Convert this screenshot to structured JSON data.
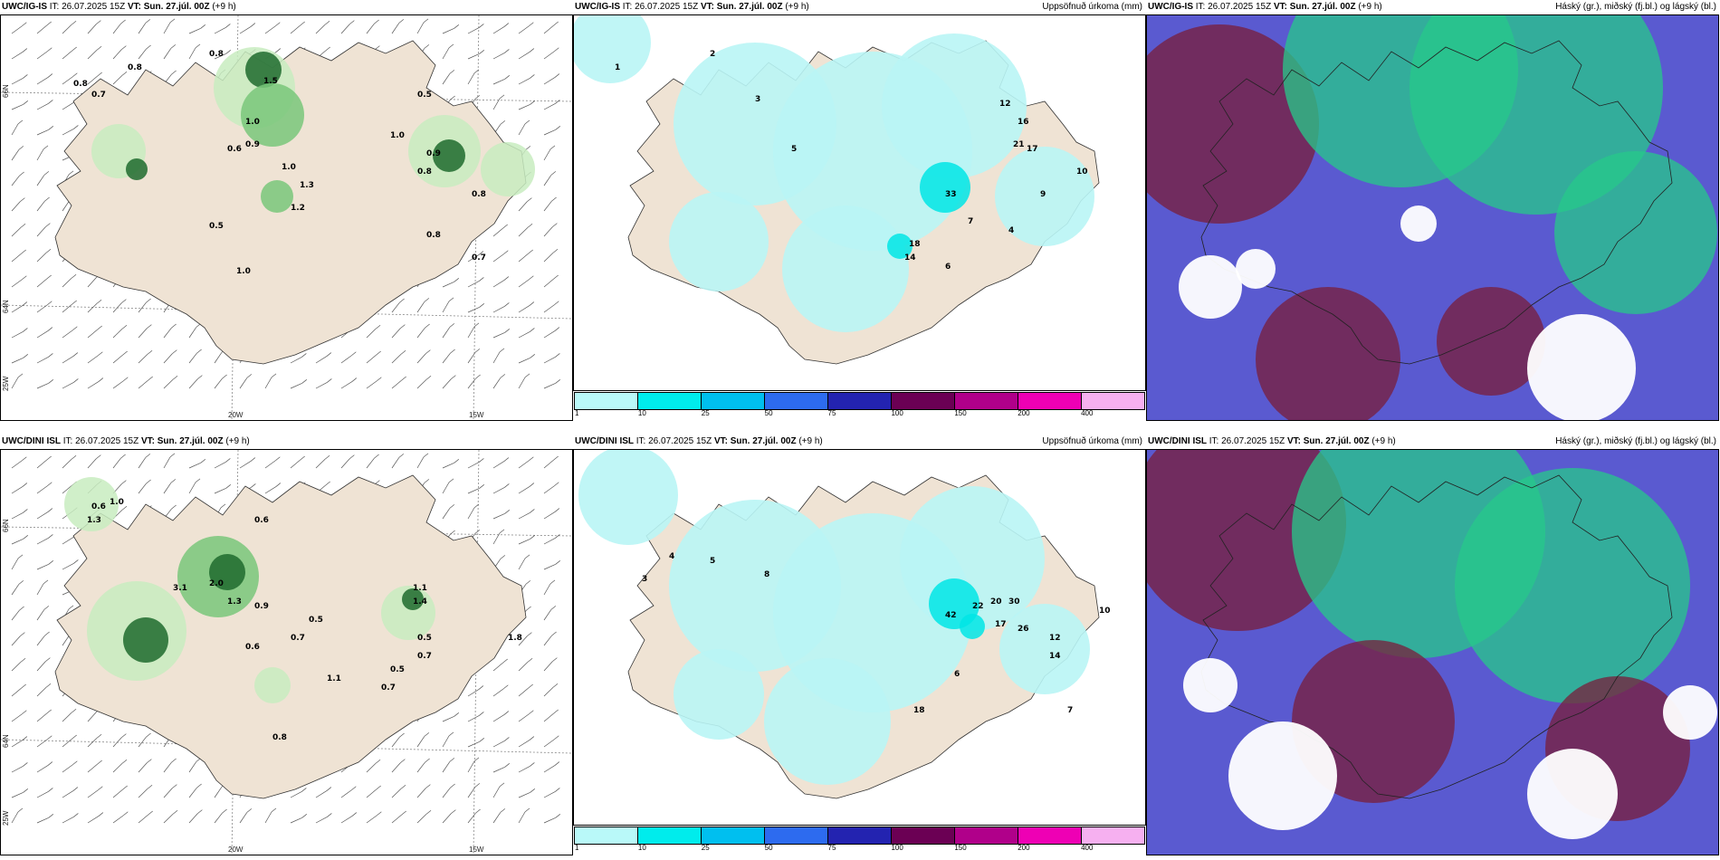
{
  "colors": {
    "land": "#efe3d4",
    "sea": "#ffffff",
    "precip_light": "#b9f5f5",
    "precip_mid": "#00e5e5",
    "green_light": "#c8ecc0",
    "green_mid": "#79c77a",
    "green_dark": "#1e6b2e",
    "cloud_low": "#5a5ad0",
    "cloud_mid": "#7a1e3a",
    "cloud_high": "#27c98a"
  },
  "colorbar": {
    "colors": [
      "#b9f9f9",
      "#00ecec",
      "#00bfef",
      "#2d6bef",
      "#2323b0",
      "#6b0054",
      "#b0008a",
      "#ee00b4",
      "#f6b0f0"
    ],
    "labels": [
      "1",
      "10",
      "25",
      "50",
      "75",
      "100",
      "150",
      "200",
      "400"
    ]
  },
  "rows": [
    {
      "model": "UWC/IG-IS",
      "it_label": "IT:",
      "it_value": "26.07.2025 15Z",
      "vt_label": "VT:",
      "vt_value": "Sun. 27.júl. 00Z",
      "lead": "(+9 h)",
      "precip_title": "Uppsöfnuð úrkoma (mm)",
      "cloud_title": "Háský (gr.), miðský (fj.bl.) og lágský (bl.)",
      "axis": {
        "lat_66": "66N",
        "lat_64": "64N",
        "lon_25": "25W",
        "lon_20": "20W",
        "lon_15": "15W"
      },
      "wind_values": [
        {
          "label": "0.8"
        },
        {
          "label": "0.8"
        },
        {
          "label": "0.8"
        },
        {
          "label": "0.7"
        },
        {
          "label": "1.5"
        },
        {
          "label": "0.5"
        },
        {
          "label": "1.0"
        },
        {
          "label": "0.9"
        },
        {
          "label": "0.6"
        },
        {
          "label": "1.0"
        },
        {
          "label": "0.9"
        },
        {
          "label": "1.3"
        },
        {
          "label": "1.0"
        },
        {
          "label": "0.8"
        },
        {
          "label": "1.2"
        },
        {
          "label": "0.5"
        },
        {
          "label": "1.0"
        },
        {
          "label": "0.7"
        },
        {
          "label": "0.8"
        },
        {
          "label": "0.8"
        }
      ],
      "precip_values": [
        {
          "label": "1"
        },
        {
          "label": "2"
        },
        {
          "label": "3"
        },
        {
          "label": "5"
        },
        {
          "label": "12"
        },
        {
          "label": "16"
        },
        {
          "label": "21"
        },
        {
          "label": "17"
        },
        {
          "label": "33"
        },
        {
          "label": "18"
        },
        {
          "label": "14"
        },
        {
          "label": "10"
        },
        {
          "label": "9"
        },
        {
          "label": "7"
        },
        {
          "label": "4"
        },
        {
          "label": "6"
        }
      ]
    },
    {
      "model": "UWC/DINI ISL",
      "it_label": "IT:",
      "it_value": "26.07.2025 15Z",
      "vt_label": "VT:",
      "vt_value": "Sun. 27.júl. 00Z",
      "lead": "(+9 h)",
      "precip_title": "Uppsöfnuð úrkoma (mm)",
      "cloud_title": "Háský (gr.), miðský (fj.bl.) og lágský (bl.)",
      "axis": {
        "lat_66": "66N",
        "lat_64": "64N",
        "lon_25": "25W",
        "lon_20": "20W",
        "lon_15": "15W"
      },
      "wind_values": [
        {
          "label": "0.6"
        },
        {
          "label": "1.3"
        },
        {
          "label": "1.0"
        },
        {
          "label": "0.6"
        },
        {
          "label": "3.1"
        },
        {
          "label": "2.0"
        },
        {
          "label": "1.3"
        },
        {
          "label": "0.9"
        },
        {
          "label": "0.5"
        },
        {
          "label": "0.7"
        },
        {
          "label": "1.4"
        },
        {
          "label": "1.1"
        },
        {
          "label": "0.5"
        },
        {
          "label": "0.7"
        },
        {
          "label": "0.6"
        },
        {
          "label": "1.1"
        },
        {
          "label": "0.7"
        },
        {
          "label": "0.8"
        },
        {
          "label": "1.8"
        },
        {
          "label": "0.5"
        }
      ],
      "precip_values": [
        {
          "label": "3"
        },
        {
          "label": "4"
        },
        {
          "label": "5"
        },
        {
          "label": "8"
        },
        {
          "label": "22"
        },
        {
          "label": "20"
        },
        {
          "label": "30"
        },
        {
          "label": "42"
        },
        {
          "label": "17"
        },
        {
          "label": "26"
        },
        {
          "label": "12"
        },
        {
          "label": "14"
        },
        {
          "label": "10"
        },
        {
          "label": "6"
        },
        {
          "label": "18"
        },
        {
          "label": "7"
        }
      ]
    }
  ]
}
